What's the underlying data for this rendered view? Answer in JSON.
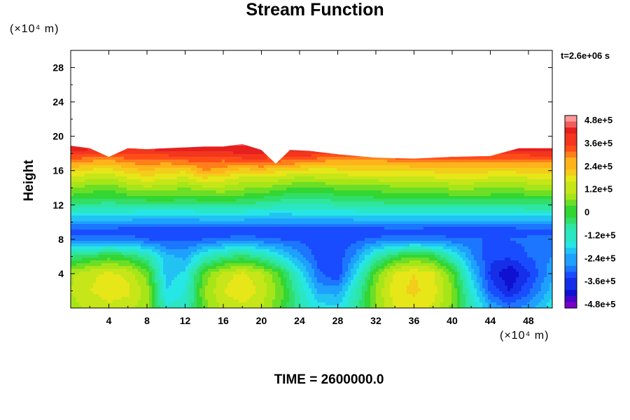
{
  "chart_data": {
    "type": "heatmap",
    "title": "Stream Function",
    "ylabel": "Height",
    "xlabel": "",
    "x_unit": "(×10⁴ m)",
    "y_unit": "(×10⁴ m)",
    "xlim": [
      0,
      50.5
    ],
    "ylim": [
      0,
      30
    ],
    "x_ticks": [
      4,
      8,
      12,
      16,
      20,
      24,
      28,
      32,
      36,
      40,
      44,
      48
    ],
    "y_ticks": [
      4,
      8,
      12,
      16,
      20,
      24,
      28
    ],
    "time_stamp": "t=2.6e+06 s",
    "footer": "TIME = 2600000.0",
    "colorbar": {
      "range": [
        -480000,
        480000
      ],
      "tick_labels": [
        "4.8e+5",
        "3.6e+5",
        "2.4e+5",
        "1.2e+5",
        "0",
        "-1.2e+5",
        "-2.4e+5",
        "-3.6e+5",
        "-4.8e+5"
      ]
    },
    "field": {
      "top_boundary_height": [
        [
          0,
          18.9
        ],
        [
          2,
          18.6
        ],
        [
          4,
          17.6
        ],
        [
          6,
          18.6
        ],
        [
          8,
          18.5
        ],
        [
          10,
          18.6
        ],
        [
          12,
          18.7
        ],
        [
          14,
          18.8
        ],
        [
          16,
          18.8
        ],
        [
          18,
          19.1
        ],
        [
          20,
          18.4
        ],
        [
          21.5,
          16.8
        ],
        [
          23,
          18.4
        ],
        [
          25,
          18.3
        ],
        [
          28,
          17.9
        ],
        [
          32,
          17.5
        ],
        [
          36,
          17.4
        ],
        [
          40,
          17.6
        ],
        [
          44,
          17.7
        ],
        [
          47,
          18.6
        ],
        [
          50.5,
          18.6
        ]
      ],
      "values_x": [
        0,
        2,
        4,
        6,
        8,
        10,
        12,
        14,
        16,
        18,
        20,
        22,
        24,
        26,
        28,
        30,
        32,
        34,
        36,
        38,
        40,
        42,
        44,
        46,
        48,
        50.5
      ],
      "values_y": [
        0,
        2,
        4,
        6,
        8,
        9,
        10,
        11,
        12,
        13,
        14,
        15,
        16,
        17,
        18,
        19
      ],
      "values": [
        [
          80000,
          110000,
          130000,
          120000,
          70000,
          -130000,
          -120000,
          40000,
          110000,
          130000,
          100000,
          20000,
          -90000,
          -160000,
          -170000,
          -80000,
          60000,
          140000,
          160000,
          130000,
          50000,
          -100000,
          -220000,
          -280000,
          -240000,
          -150000
        ],
        [
          100000,
          140000,
          160000,
          150000,
          80000,
          -180000,
          -140000,
          60000,
          140000,
          170000,
          130000,
          40000,
          -110000,
          -230000,
          -240000,
          -100000,
          70000,
          170000,
          190000,
          160000,
          60000,
          -140000,
          -310000,
          -380000,
          -310000,
          -200000
        ],
        [
          90000,
          130000,
          150000,
          130000,
          40000,
          -200000,
          -170000,
          30000,
          120000,
          150000,
          110000,
          10000,
          -150000,
          -290000,
          -340000,
          -160000,
          30000,
          150000,
          180000,
          150000,
          30000,
          -190000,
          -350000,
          -420000,
          -350000,
          -230000
        ],
        [
          -60000,
          -30000,
          0,
          -20000,
          -90000,
          -210000,
          -230000,
          -130000,
          -70000,
          -40000,
          -90000,
          -160000,
          -250000,
          -320000,
          -330000,
          -240000,
          -110000,
          -20000,
          20000,
          -10000,
          -120000,
          -250000,
          -330000,
          -330000,
          -300000,
          -260000
        ],
        [
          -280000,
          -270000,
          -270000,
          -280000,
          -300000,
          -310000,
          -310000,
          -300000,
          -290000,
          -280000,
          -290000,
          -300000,
          -310000,
          -320000,
          -320000,
          -310000,
          -290000,
          -280000,
          -270000,
          -280000,
          -290000,
          -300000,
          -300000,
          -300000,
          -290000,
          -280000
        ],
        [
          -320000,
          -320000,
          -320000,
          -330000,
          -330000,
          -340000,
          -340000,
          -340000,
          -330000,
          -330000,
          -330000,
          -340000,
          -340000,
          -340000,
          -340000,
          -330000,
          -330000,
          -320000,
          -320000,
          -330000,
          -330000,
          -330000,
          -330000,
          -330000,
          -320000,
          -320000
        ],
        [
          -230000,
          -230000,
          -240000,
          -240000,
          -250000,
          -250000,
          -250000,
          -240000,
          -240000,
          -240000,
          -250000,
          -250000,
          -250000,
          -250000,
          -250000,
          -240000,
          -240000,
          -240000,
          -240000,
          -240000,
          -240000,
          -240000,
          -240000,
          -240000,
          -230000,
          -230000
        ],
        [
          -150000,
          -150000,
          -160000,
          -160000,
          -170000,
          -170000,
          -170000,
          -160000,
          -160000,
          -160000,
          -170000,
          -180000,
          -170000,
          -170000,
          -170000,
          -160000,
          -160000,
          -160000,
          -160000,
          -160000,
          -160000,
          -160000,
          -160000,
          -160000,
          -150000,
          -150000
        ],
        [
          -60000,
          -70000,
          -80000,
          -70000,
          -70000,
          -60000,
          -70000,
          -60000,
          -60000,
          -70000,
          -80000,
          -100000,
          -110000,
          -100000,
          -90000,
          -80000,
          -80000,
          -70000,
          -70000,
          -70000,
          -70000,
          -70000,
          -70000,
          -70000,
          -60000,
          -60000
        ],
        [
          10000,
          0,
          -10000,
          10000,
          20000,
          20000,
          10000,
          20000,
          30000,
          10000,
          -10000,
          -30000,
          -50000,
          -40000,
          -30000,
          -20000,
          -10000,
          0,
          0,
          0,
          10000,
          10000,
          10000,
          0,
          10000,
          10000
        ],
        [
          70000,
          40000,
          30000,
          70000,
          90000,
          80000,
          60000,
          90000,
          90000,
          70000,
          60000,
          40000,
          10000,
          20000,
          30000,
          40000,
          40000,
          50000,
          60000,
          60000,
          70000,
          70000,
          60000,
          60000,
          70000,
          80000
        ],
        [
          130000,
          100000,
          90000,
          130000,
          160000,
          140000,
          120000,
          170000,
          150000,
          120000,
          120000,
          110000,
          80000,
          90000,
          100000,
          110000,
          110000,
          120000,
          120000,
          130000,
          130000,
          130000,
          130000,
          120000,
          130000,
          140000
        ],
        [
          190000,
          170000,
          160000,
          200000,
          220000,
          200000,
          190000,
          260000,
          240000,
          200000,
          210000,
          190000,
          170000,
          160000,
          170000,
          180000,
          180000,
          180000,
          190000,
          190000,
          200000,
          200000,
          190000,
          190000,
          200000,
          200000
        ],
        [
          270000,
          250000,
          240000,
          270000,
          280000,
          270000,
          290000,
          300000,
          290000,
          310000,
          320000,
          290000,
          280000,
          250000,
          240000,
          240000,
          240000,
          250000,
          260000,
          270000,
          270000,
          260000,
          260000,
          260000,
          270000,
          270000
        ],
        [
          360000,
          350000,
          340000,
          350000,
          350000,
          360000,
          360000,
          360000,
          370000,
          380000,
          380000,
          360000,
          370000,
          360000,
          350000,
          350000,
          360000,
          360000,
          370000,
          370000,
          370000,
          370000,
          360000,
          360000,
          360000,
          370000
        ],
        [
          420000,
          420000,
          410000,
          410000,
          410000,
          420000,
          420000,
          420000,
          420000,
          430000,
          420000,
          400000,
          410000,
          410000,
          410000,
          420000,
          420000,
          420000,
          420000,
          420000,
          420000,
          420000,
          420000,
          420000,
          420000,
          430000
        ]
      ]
    }
  },
  "colors": {
    "colorbar_stops": [
      "#7a00c8",
      "#1010d0",
      "#1a4cff",
      "#1ea0ff",
      "#26e6e6",
      "#2ee6a0",
      "#33d633",
      "#a6e619",
      "#e6e619",
      "#ffb31a",
      "#ff4d1a",
      "#e61f1f",
      "#ff9999"
    ]
  }
}
